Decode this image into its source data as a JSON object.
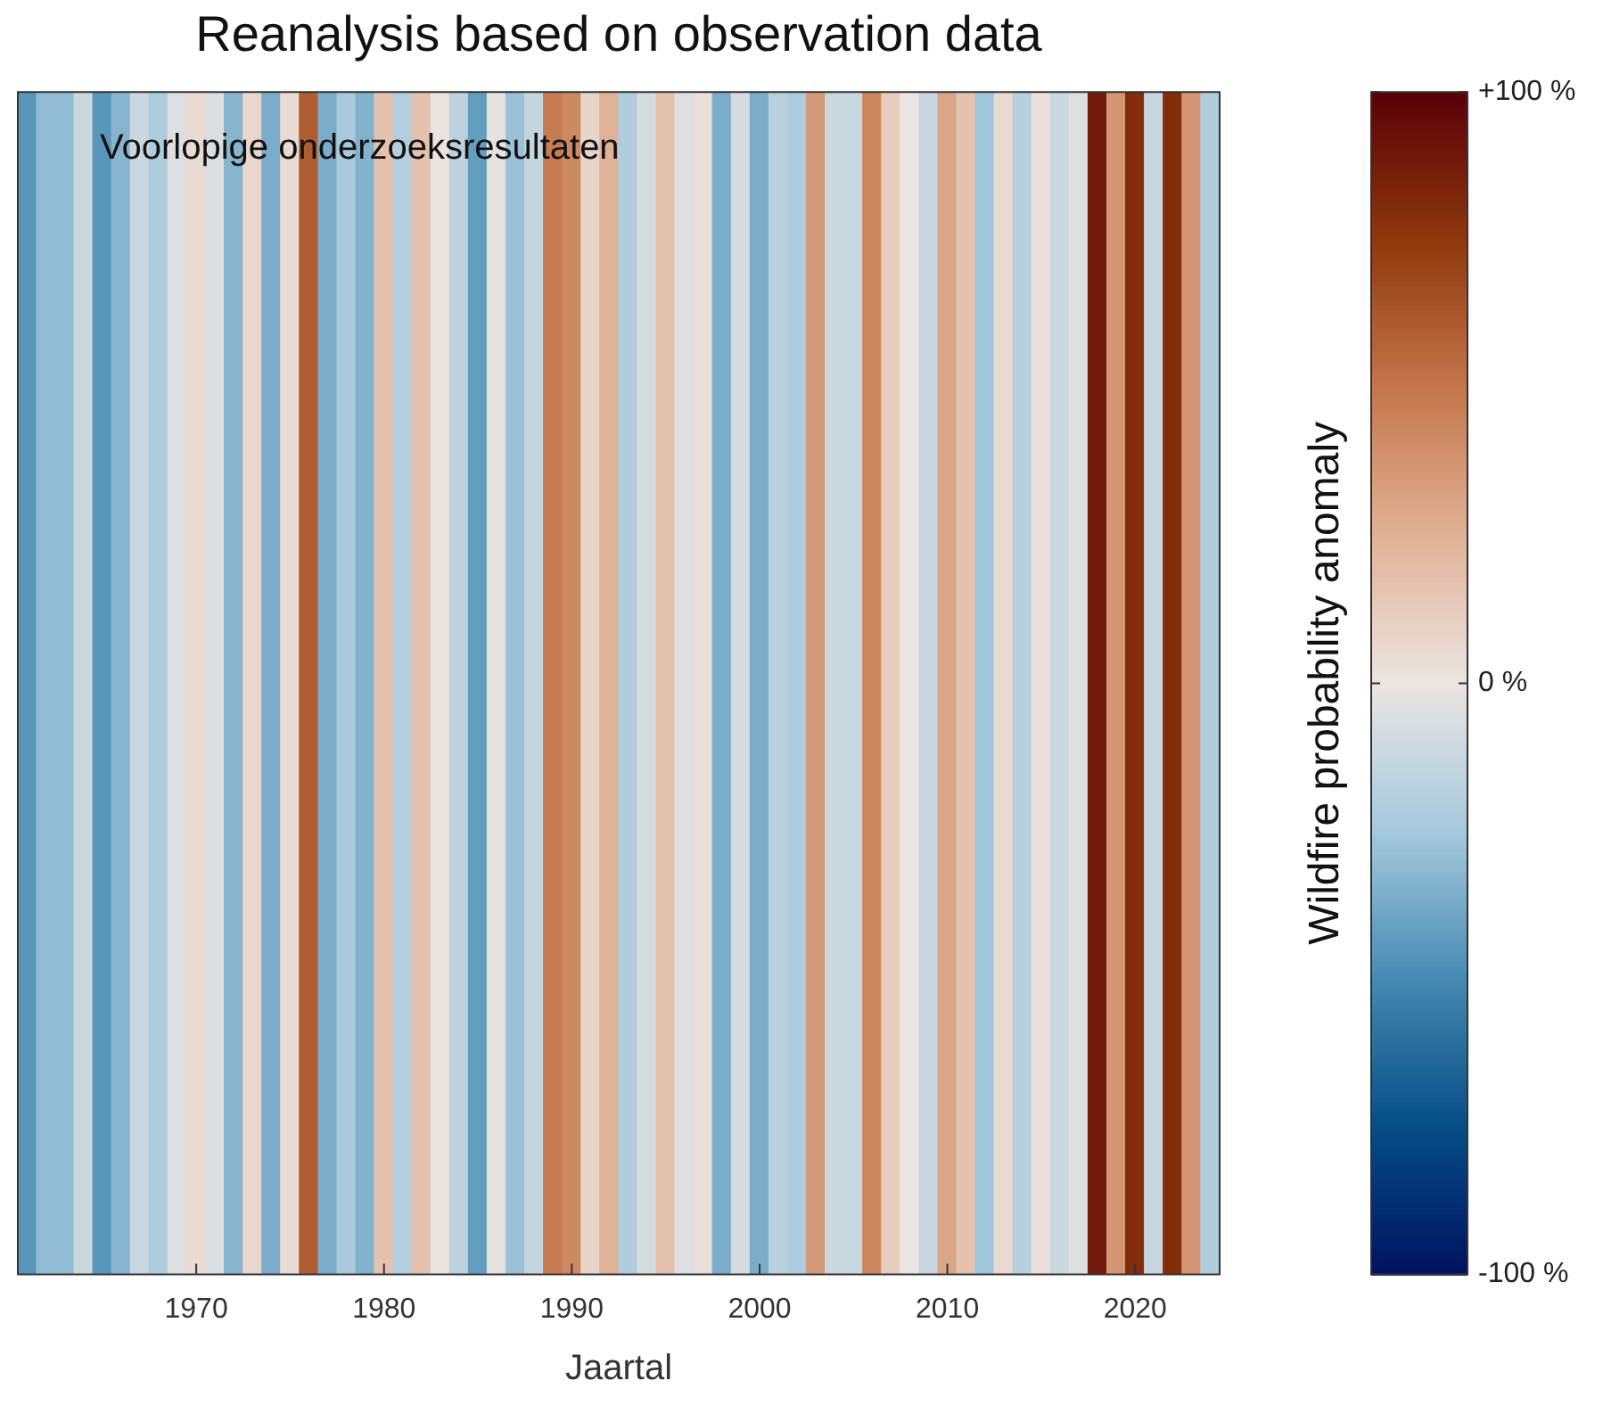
{
  "chart_data": {
    "type": "heatmap",
    "title": "Reanalysis based on observation data",
    "xlabel": "Jaartal",
    "clabel": "Wildfire probability anomaly",
    "annotations": [
      "Voorlopige onderzoeksresultaten"
    ],
    "categories": [
      null,
      null,
      null,
      null,
      null,
      null,
      null,
      null,
      null,
      "1970",
      null,
      null,
      null,
      null,
      null,
      null,
      null,
      null,
      null,
      "1980",
      null,
      null,
      null,
      null,
      null,
      null,
      null,
      null,
      null,
      "1990",
      null,
      null,
      null,
      null,
      null,
      null,
      null,
      null,
      null,
      "2000",
      null,
      null,
      null,
      null,
      null,
      null,
      null,
      null,
      null,
      "2010",
      null,
      null,
      null,
      null,
      null,
      null,
      null,
      null,
      null,
      "2020",
      null,
      null,
      null,
      null
    ],
    "y_categories": [
      null
    ],
    "cells": [
      [
        -45,
        -30,
        -30,
        -12,
        -45,
        -33,
        -12,
        -22,
        -5,
        5,
        -6,
        -33,
        7,
        -36,
        5,
        60,
        -36,
        -24,
        -34,
        17,
        -20,
        17,
        1,
        -17,
        -42,
        -2,
        -28,
        -14,
        48,
        42,
        8,
        25,
        -21,
        -8,
        17,
        -5,
        3,
        -36,
        -8,
        -36,
        -18,
        -22,
        35,
        -12,
        -12,
        43,
        12,
        0,
        -13,
        30,
        17,
        -26,
        6,
        -19,
        3,
        -12,
        -5,
        88,
        37,
        80,
        -13,
        80,
        37,
        -21
      ]
    ],
    "clim": [
      -100,
      100
    ],
    "cticks": [
      {
        "value": 100,
        "label": "+100 %"
      },
      {
        "value": 0,
        "label": "0 %"
      },
      {
        "value": -100,
        "label": "-100 %"
      }
    ]
  }
}
